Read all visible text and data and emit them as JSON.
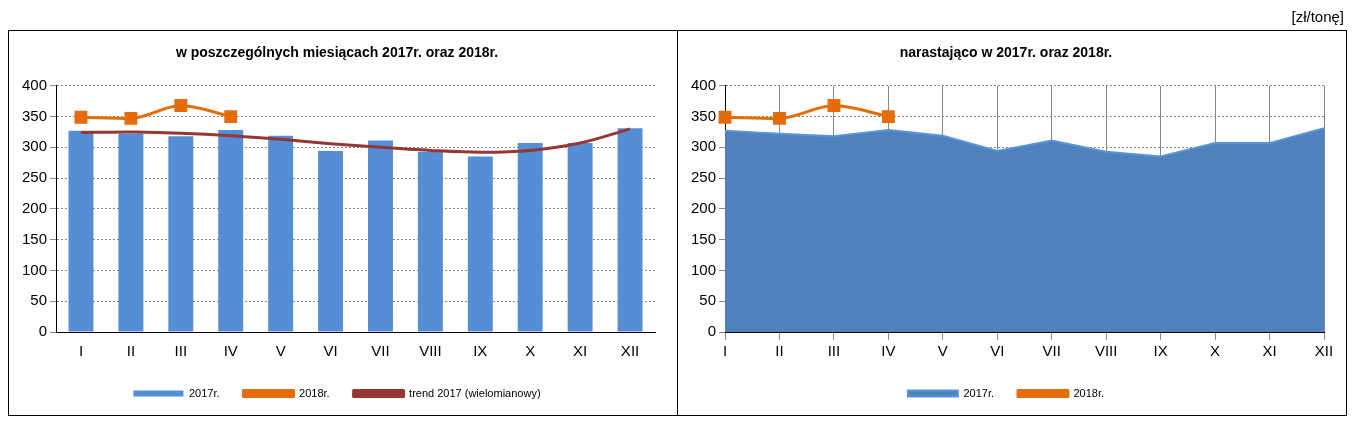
{
  "chart_data": [
    {
      "type": "bar",
      "title": "w poszczególnych miesiącach 2017r. oraz 2018r.",
      "categories": [
        "I",
        "II",
        "III",
        "IV",
        "V",
        "VI",
        "VII",
        "VIII",
        "IX",
        "X",
        "XI",
        "XII"
      ],
      "ylim": [
        0,
        400
      ],
      "yticks": [
        0,
        50,
        100,
        150,
        200,
        250,
        300,
        350,
        400
      ],
      "grid": "y",
      "legend": "bottom",
      "series": [
        {
          "name": "2017r.",
          "color": "#558ed5",
          "values": [
            327,
            322,
            318,
            328,
            319,
            294,
            311,
            293,
            285,
            307,
            307,
            331
          ]
        },
        {
          "name": "2018r.",
          "type": "line",
          "color": "#e46c0a",
          "marker": "square",
          "values": [
            349,
            347,
            368,
            350,
            null,
            null,
            null,
            null,
            null,
            null,
            null,
            null
          ]
        },
        {
          "name": "trend 2017 (wielomianowy)",
          "type": "line",
          "color": "#953735",
          "values": [
            324,
            325,
            323,
            319,
            313,
            306,
            300,
            295,
            292,
            295,
            307,
            330
          ]
        }
      ]
    },
    {
      "type": "area",
      "title": "narastająco w 2017r. oraz 2018r.",
      "annotations": [
        "[zł/tonę]"
      ],
      "categories": [
        "I",
        "II",
        "III",
        "IV",
        "V",
        "VI",
        "VII",
        "VIII",
        "IX",
        "X",
        "XI",
        "XII"
      ],
      "ylim": [
        0,
        400
      ],
      "yticks": [
        0,
        50,
        100,
        150,
        200,
        250,
        300,
        350,
        400
      ],
      "grid": true,
      "legend": "bottom",
      "series": [
        {
          "name": "2017r.",
          "color": "#4f81bd",
          "values": [
            327,
            322,
            318,
            328,
            319,
            294,
            311,
            293,
            285,
            307,
            307,
            331
          ]
        },
        {
          "name": "2018r.",
          "type": "line",
          "color": "#e46c0a",
          "marker": "square",
          "values": [
            349,
            347,
            368,
            350,
            null,
            null,
            null,
            null,
            null,
            null,
            null,
            null
          ]
        }
      ]
    }
  ]
}
